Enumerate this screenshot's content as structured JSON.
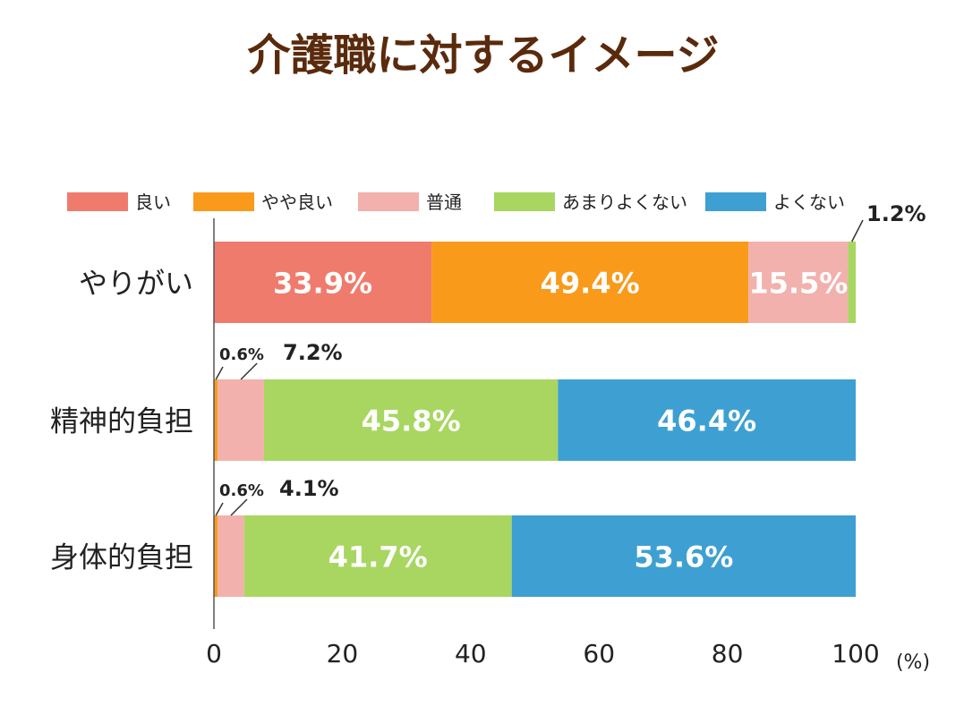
{
  "title": "介護職に対するイメージ",
  "unit_label": "(%)",
  "chart_data": {
    "type": "bar",
    "orientation": "horizontal",
    "stacked": true,
    "title": "介護職に対するイメージ",
    "categories": [
      "やりがい",
      "精神的負担",
      "身体的負担"
    ],
    "series": [
      {
        "name": "良い",
        "color": "#ef7b6d",
        "values": [
          33.9,
          0,
          0
        ]
      },
      {
        "name": "やや良い",
        "color": "#f99a1b",
        "values": [
          49.4,
          0.6,
          0.6
        ]
      },
      {
        "name": "普通",
        "color": "#f2b1ac",
        "values": [
          15.5,
          7.2,
          4.1
        ]
      },
      {
        "name": "あまりよくない",
        "color": "#a8d661",
        "values": [
          1.2,
          45.8,
          41.7
        ]
      },
      {
        "name": "よくない",
        "color": "#3ea0d2",
        "values": [
          0,
          46.4,
          53.6
        ]
      }
    ],
    "data_labels": [
      [
        "33.9%",
        "49.4%",
        "15.5%",
        "1.2%",
        ""
      ],
      [
        "",
        "0.6%",
        "7.2%",
        "45.8%",
        "46.4%"
      ],
      [
        "",
        "0.6%",
        "4.1%",
        "41.7%",
        "53.6%"
      ]
    ],
    "x_ticks": [
      "0",
      "20",
      "40",
      "60",
      "80",
      "100"
    ],
    "xlim": [
      0,
      100
    ],
    "legend_position": "top",
    "grid": false
  }
}
